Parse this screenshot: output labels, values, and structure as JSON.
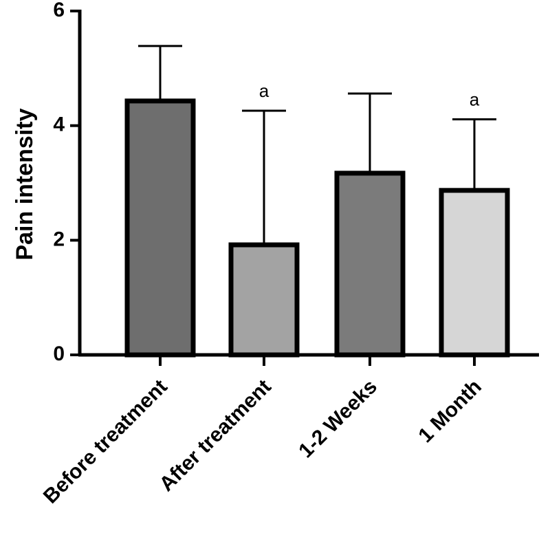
{
  "chart_data": {
    "type": "bar",
    "title": "",
    "xlabel": "",
    "ylabel": "Pain intensity",
    "ylim": [
      0,
      6
    ],
    "yticks": [
      0,
      2,
      4,
      6
    ],
    "grid": false,
    "categories": [
      "Before treatment",
      "After treatment",
      "1-2 Weeks",
      "1 Month"
    ],
    "values": [
      4.43,
      1.92,
      3.17,
      2.87
    ],
    "error_upper": [
      5.39,
      4.26,
      4.56,
      4.11
    ],
    "annotations": [
      "",
      "a",
      "",
      "a"
    ],
    "colors": [
      "#6e6e6e",
      "#a3a3a3",
      "#7b7b7b",
      "#d6d6d6"
    ]
  }
}
